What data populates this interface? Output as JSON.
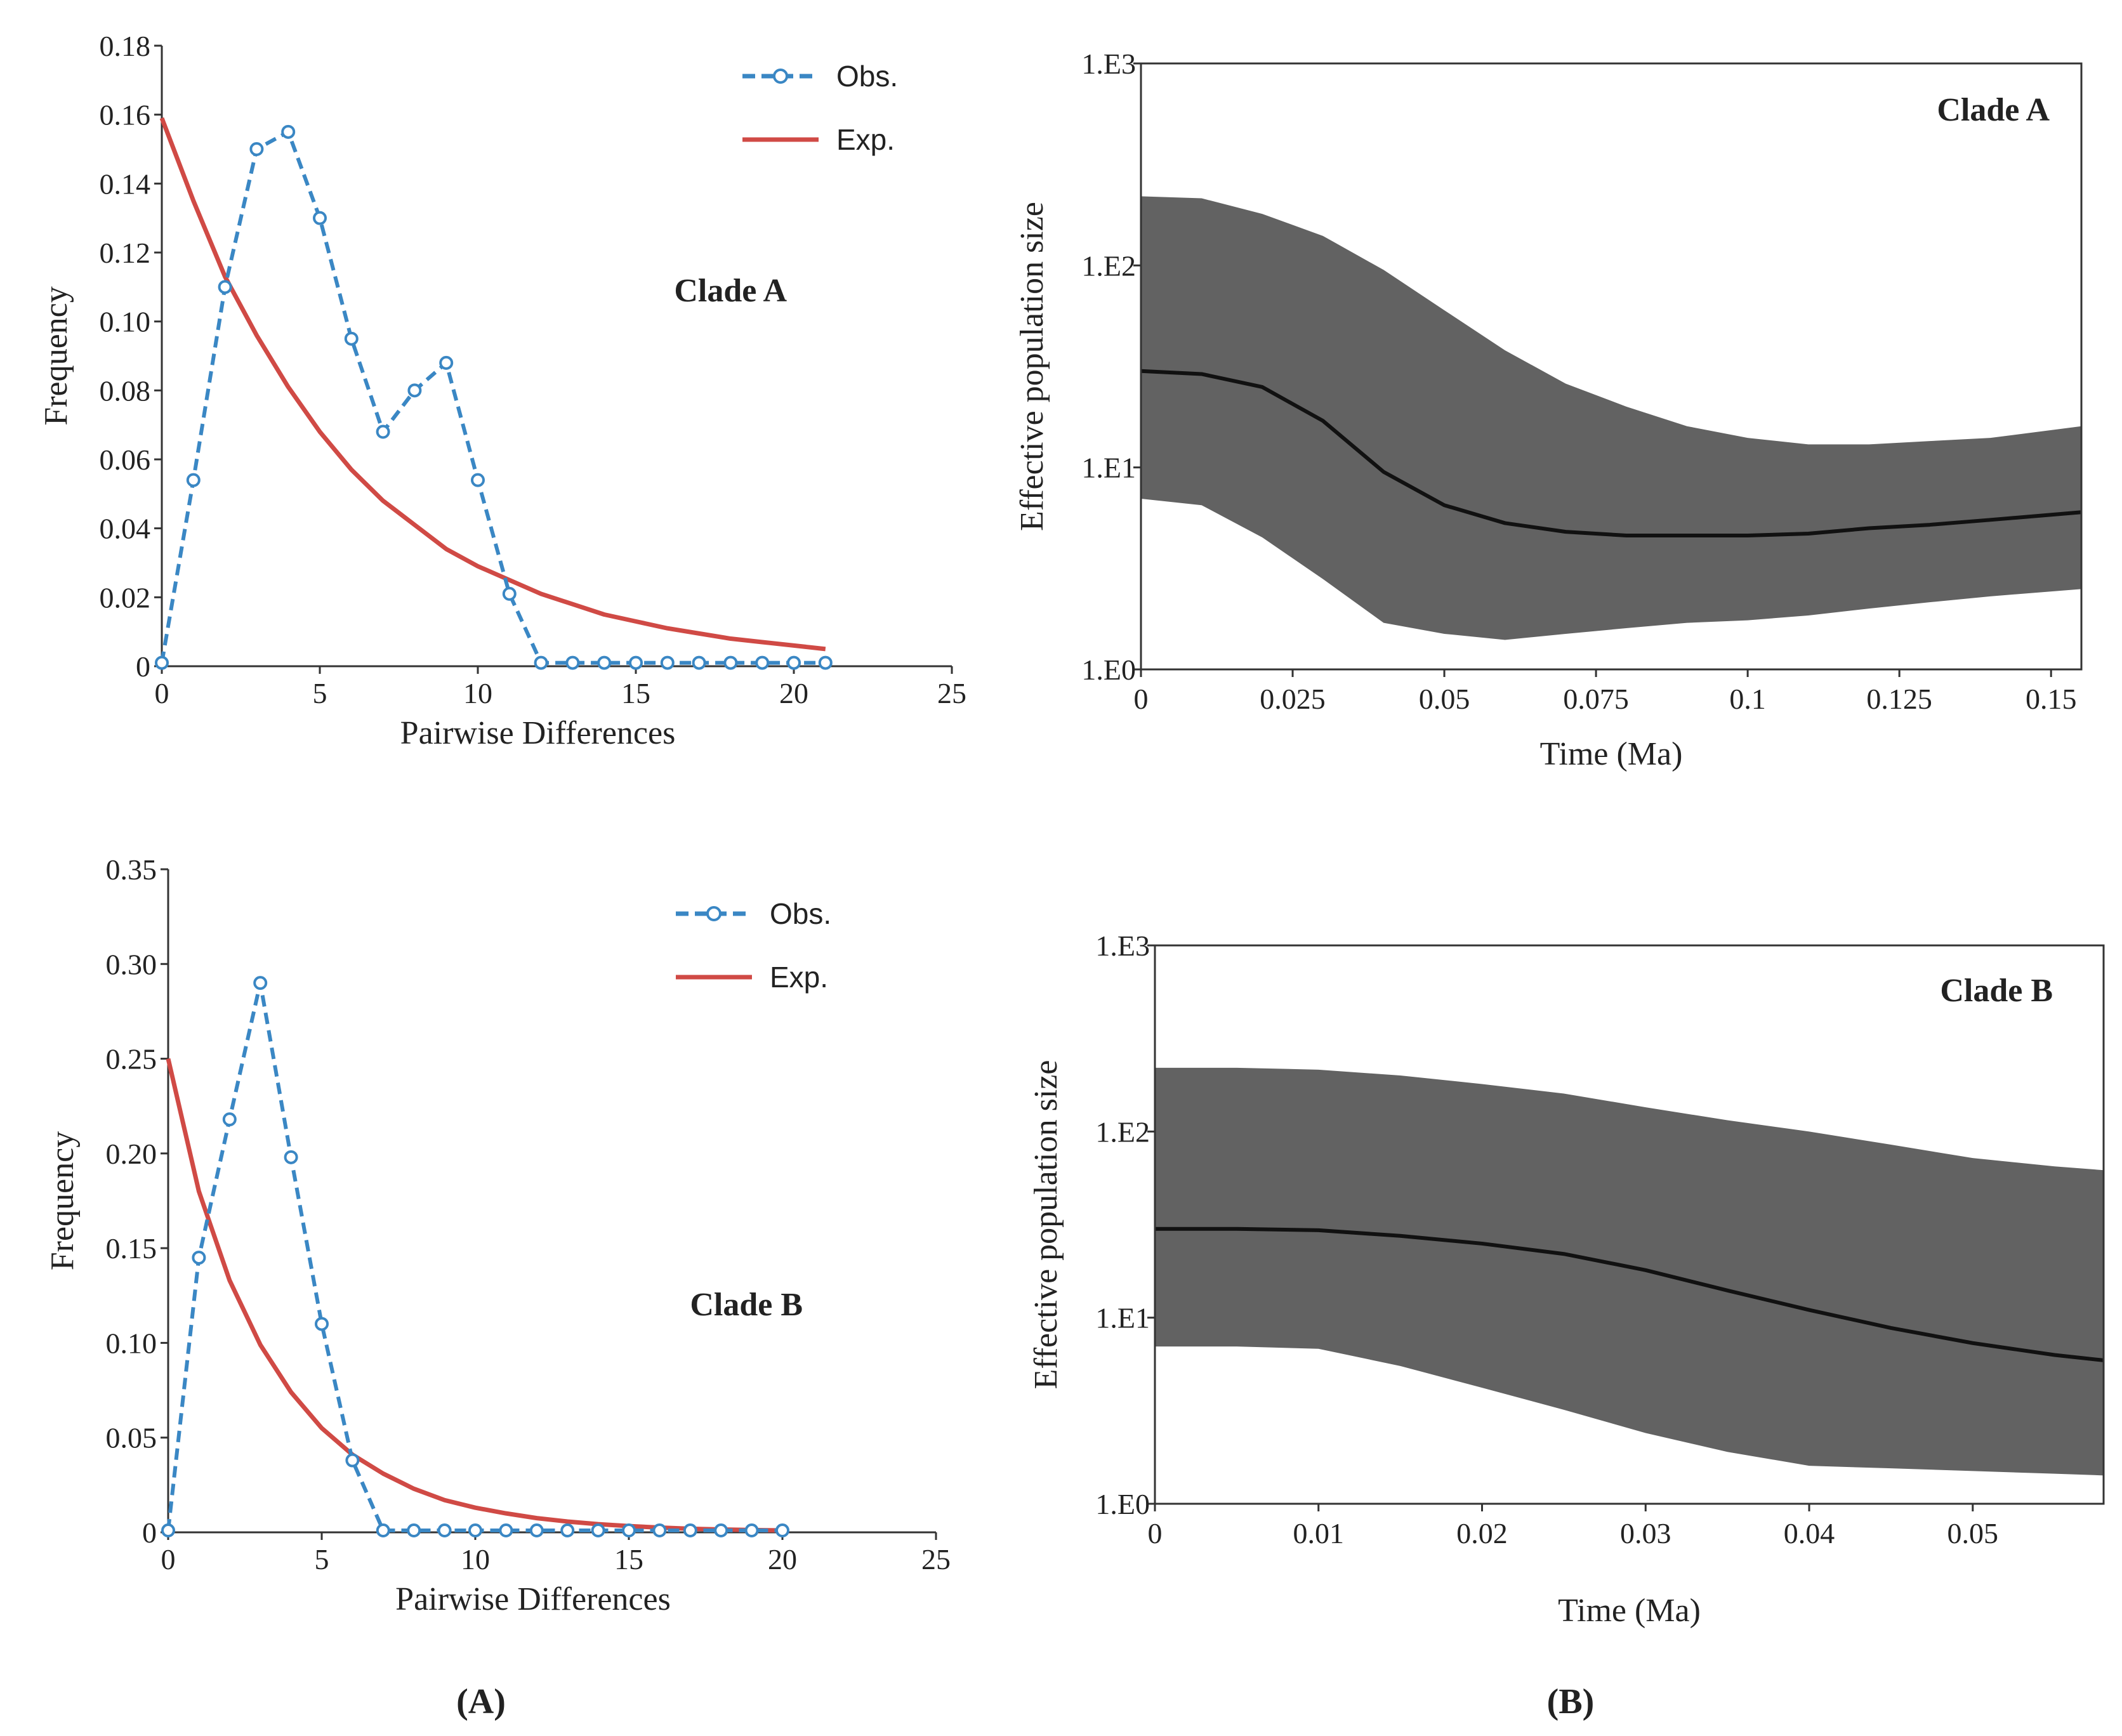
{
  "figure": {
    "panel_labels": [
      "(A)",
      "(B)"
    ]
  },
  "colors": {
    "observed": "#3a87c4",
    "expected": "#d04a45",
    "band": "#626262",
    "median": "#111111"
  },
  "chart_data": [
    {
      "id": "mismatch-clade-a",
      "type": "line",
      "title": "Clade A",
      "xlabel": "Pairwise Differences",
      "ylabel": "Frequency",
      "xlim": [
        0,
        25
      ],
      "ylim": [
        0,
        0.18
      ],
      "xticks": [
        0,
        5,
        10,
        15,
        20,
        25
      ],
      "xtick_labels": [
        "0",
        "5",
        "10",
        "15",
        "20",
        "25"
      ],
      "yticks": [
        0,
        0.02,
        0.04,
        0.06,
        0.08,
        0.1,
        0.12,
        0.14,
        0.16,
        0.18
      ],
      "ytick_labels": [
        "0",
        "0.02",
        "0.04",
        "0.06",
        "0.08",
        "0.10",
        "0.12",
        "0.14",
        "0.16",
        "0.18"
      ],
      "legend": [
        "Obs.",
        "Exp."
      ],
      "series": [
        {
          "name": "Obs.",
          "style": "dashed-markers",
          "x": [
            0,
            1,
            2,
            3,
            4,
            5,
            6,
            7,
            8,
            9,
            10,
            11,
            12,
            13,
            14,
            15,
            16,
            17,
            18,
            19,
            20,
            21
          ],
          "values": [
            0.001,
            0.054,
            0.11,
            0.15,
            0.155,
            0.13,
            0.095,
            0.068,
            0.08,
            0.088,
            0.054,
            0.021,
            0.001,
            0.001,
            0.001,
            0.001,
            0.001,
            0.001,
            0.001,
            0.001,
            0.001,
            0.001
          ]
        },
        {
          "name": "Exp.",
          "style": "solid",
          "x": [
            0,
            1,
            2,
            3,
            4,
            5,
            6,
            7,
            8,
            9,
            10,
            11,
            12,
            13,
            14,
            15,
            16,
            17,
            18,
            19,
            20,
            21
          ],
          "values": [
            0.159,
            0.135,
            0.113,
            0.096,
            0.081,
            0.068,
            0.057,
            0.048,
            0.041,
            0.034,
            0.029,
            0.025,
            0.021,
            0.018,
            0.015,
            0.013,
            0.011,
            0.0095,
            0.008,
            0.007,
            0.006,
            0.005
          ]
        }
      ]
    },
    {
      "id": "mismatch-clade-b",
      "type": "line",
      "title": "Clade B",
      "xlabel": "Pairwise Differences",
      "ylabel": "Frequency",
      "xlim": [
        0,
        25
      ],
      "ylim": [
        0,
        0.35
      ],
      "xticks": [
        0,
        5,
        10,
        15,
        20,
        25
      ],
      "xtick_labels": [
        "0",
        "5",
        "10",
        "15",
        "20",
        "25"
      ],
      "yticks": [
        0,
        0.05,
        0.1,
        0.15,
        0.2,
        0.25,
        0.3,
        0.35
      ],
      "ytick_labels": [
        "0",
        "0.05",
        "0.10",
        "0.15",
        "0.20",
        "0.25",
        "0.30",
        "0.35"
      ],
      "legend": [
        "Obs.",
        "Exp."
      ],
      "series": [
        {
          "name": "Obs.",
          "style": "dashed-markers",
          "x": [
            0,
            1,
            2,
            3,
            4,
            5,
            6,
            7,
            8,
            9,
            10,
            11,
            12,
            13,
            14,
            15,
            16,
            17,
            18,
            19,
            20
          ],
          "values": [
            0.001,
            0.145,
            0.218,
            0.29,
            0.198,
            0.11,
            0.038,
            0.001,
            0.001,
            0.001,
            0.001,
            0.001,
            0.001,
            0.001,
            0.001,
            0.001,
            0.001,
            0.001,
            0.001,
            0.001,
            0.001
          ]
        },
        {
          "name": "Exp.",
          "style": "solid",
          "x": [
            0,
            1,
            2,
            3,
            4,
            5,
            6,
            7,
            8,
            9,
            10,
            11,
            12,
            13,
            14,
            15,
            16,
            17,
            18,
            19,
            20
          ],
          "values": [
            0.25,
            0.18,
            0.133,
            0.099,
            0.074,
            0.055,
            0.041,
            0.031,
            0.023,
            0.017,
            0.013,
            0.01,
            0.0075,
            0.0057,
            0.0043,
            0.0033,
            0.0025,
            0.0019,
            0.0015,
            0.0012,
            0.001
          ]
        }
      ]
    },
    {
      "id": "skyline-clade-a",
      "type": "area",
      "title": "Clade A",
      "xlabel": "Time (Ma)",
      "ylabel": "Effective population size",
      "xlim": [
        0,
        0.155
      ],
      "ylim_log10": [
        0,
        3
      ],
      "xticks": [
        0,
        0.025,
        0.05,
        0.075,
        0.1,
        0.125,
        0.15
      ],
      "xtick_labels": [
        "0",
        "0.025",
        "0.05",
        "0.075",
        "0.1",
        "0.125",
        "0.15"
      ],
      "yticks_log10": [
        0,
        1,
        2,
        3
      ],
      "ytick_labels": [
        "1.E0",
        "1.E1",
        "1.E2",
        "1.E3"
      ],
      "x": [
        0,
        0.01,
        0.02,
        0.03,
        0.04,
        0.05,
        0.06,
        0.07,
        0.08,
        0.09,
        0.1,
        0.11,
        0.12,
        0.13,
        0.14,
        0.155
      ],
      "series": [
        {
          "name": "upper 95% HPD",
          "values": [
            220,
            215,
            180,
            140,
            95,
            60,
            38,
            26,
            20,
            16,
            14,
            13,
            13,
            13.5,
            14,
            16
          ]
        },
        {
          "name": "median",
          "values": [
            30,
            29,
            25,
            17,
            9.5,
            6.5,
            5.3,
            4.8,
            4.6,
            4.6,
            4.6,
            4.7,
            5,
            5.2,
            5.5,
            6
          ]
        },
        {
          "name": "lower 95% HPD",
          "values": [
            7,
            6.5,
            4.5,
            2.8,
            1.7,
            1.5,
            1.4,
            1.5,
            1.6,
            1.7,
            1.75,
            1.85,
            2,
            2.15,
            2.3,
            2.5
          ]
        }
      ]
    },
    {
      "id": "skyline-clade-b",
      "type": "area",
      "title": "Clade B",
      "xlabel": "Time (Ma)",
      "ylabel": "Effective population size",
      "xlim": [
        0,
        0.058
      ],
      "ylim_log10": [
        0,
        3
      ],
      "xticks": [
        0,
        0.01,
        0.02,
        0.03,
        0.04,
        0.05
      ],
      "xtick_labels": [
        "0",
        "0.01",
        "0.02",
        "0.03",
        "0.04",
        "0.05"
      ],
      "yticks_log10": [
        0,
        1,
        2,
        3
      ],
      "ytick_labels": [
        "1.E0",
        "1.E1",
        "1.E2",
        "1.E3"
      ],
      "x": [
        0,
        0.005,
        0.01,
        0.015,
        0.02,
        0.025,
        0.03,
        0.035,
        0.04,
        0.045,
        0.05,
        0.055,
        0.058
      ],
      "series": [
        {
          "name": "upper 95% HPD",
          "values": [
            220,
            220,
            215,
            200,
            180,
            160,
            135,
            115,
            100,
            85,
            72,
            65,
            62
          ]
        },
        {
          "name": "median",
          "values": [
            30,
            30,
            29.5,
            27.5,
            25,
            22,
            18,
            14,
            11,
            8.8,
            7.3,
            6.3,
            5.9
          ]
        },
        {
          "name": "lower 95% HPD",
          "values": [
            7,
            7,
            6.8,
            5.5,
            4.2,
            3.2,
            2.4,
            1.9,
            1.6,
            1.55,
            1.5,
            1.45,
            1.42
          ]
        }
      ]
    }
  ]
}
